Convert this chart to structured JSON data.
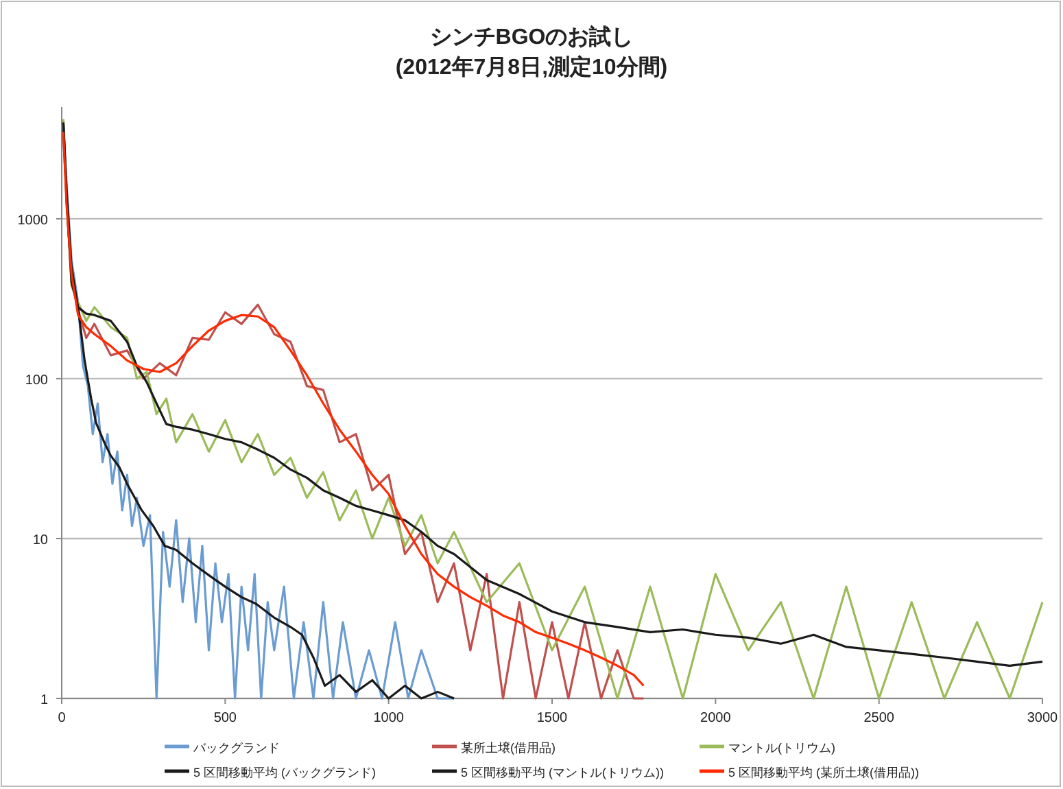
{
  "chart_data": {
    "type": "line",
    "title": "シンチBGOのお試し",
    "subtitle": "(2012年7月8日,測定10分間)",
    "xlim": [
      0,
      3000
    ],
    "xticks": [
      0,
      500,
      1000,
      1500,
      2000,
      2500,
      3000
    ],
    "ylim": [
      1,
      5000
    ],
    "yticks": [
      1,
      10,
      100,
      1000
    ],
    "log": true,
    "grid": "y",
    "legend": "bottom",
    "series": [
      {
        "name": "バックグランド",
        "color": "#6a9bd1",
        "x": [
          5,
          15,
          30,
          50,
          65,
          80,
          95,
          110,
          125,
          140,
          155,
          170,
          185,
          200,
          215,
          230,
          250,
          270,
          290,
          310,
          330,
          350,
          370,
          390,
          410,
          430,
          450,
          470,
          490,
          510,
          530,
          550,
          570,
          590,
          610,
          630,
          650,
          680,
          710,
          740,
          770,
          800,
          830,
          860,
          900,
          940,
          980,
          1020,
          1060,
          1100,
          1150,
          1200
        ],
        "values": [
          3800,
          1600,
          550,
          300,
          120,
          90,
          45,
          70,
          30,
          45,
          22,
          35,
          15,
          25,
          12,
          18,
          9,
          14,
          1,
          11,
          5,
          13,
          4,
          10,
          3,
          9,
          2,
          7,
          3,
          6,
          1,
          5,
          2,
          6,
          1,
          4,
          2,
          5,
          1,
          3,
          1,
          4,
          1,
          3,
          1,
          2,
          1,
          3,
          1,
          2,
          1,
          1
        ]
      },
      {
        "name": "某所土壌(借用品)",
        "color": "#c0504d",
        "x": [
          5,
          15,
          30,
          50,
          75,
          100,
          150,
          200,
          250,
          300,
          350,
          400,
          450,
          500,
          550,
          600,
          650,
          700,
          750,
          800,
          850,
          900,
          950,
          1000,
          1050,
          1100,
          1150,
          1200,
          1250,
          1300,
          1350,
          1400,
          1450,
          1500,
          1550,
          1600,
          1650,
          1700,
          1750,
          1780
        ],
        "values": [
          3300,
          1300,
          420,
          270,
          180,
          220,
          140,
          150,
          100,
          125,
          105,
          180,
          175,
          260,
          220,
          290,
          190,
          170,
          90,
          85,
          40,
          45,
          20,
          25,
          8,
          11,
          4,
          7,
          2,
          6,
          1,
          4,
          1,
          3,
          1,
          3,
          1,
          2,
          1,
          1
        ]
      },
      {
        "name": "マントル(トリウム)",
        "color": "#9bbb59",
        "x": [
          5,
          15,
          30,
          50,
          75,
          100,
          150,
          200,
          230,
          260,
          290,
          320,
          350,
          400,
          450,
          500,
          550,
          600,
          650,
          700,
          750,
          800,
          850,
          900,
          950,
          1000,
          1050,
          1100,
          1150,
          1200,
          1300,
          1400,
          1500,
          1600,
          1700,
          1800,
          1900,
          2000,
          2100,
          2200,
          2300,
          2400,
          2500,
          2600,
          2700,
          2800,
          2900,
          3000
        ],
        "values": [
          4200,
          1400,
          380,
          300,
          230,
          280,
          210,
          180,
          100,
          110,
          60,
          75,
          40,
          60,
          35,
          55,
          30,
          45,
          25,
          32,
          18,
          26,
          13,
          20,
          10,
          18,
          9,
          14,
          7,
          11,
          4,
          7,
          2,
          5,
          1,
          5,
          1,
          6,
          2,
          4,
          1,
          5,
          1,
          4,
          1,
          3,
          1,
          4
        ]
      },
      {
        "name": "5 区間移動平均 (バックグランド)",
        "color": "#1a1a1a",
        "x": [
          5,
          15,
          30,
          50,
          70,
          90,
          105,
          130,
          150,
          176,
          200,
          245,
          280,
          315,
          350,
          400,
          455,
          500,
          550,
          595,
          650,
          700,
          735,
          770,
          805,
          850,
          900,
          950,
          1000,
          1050,
          1100,
          1150,
          1200
        ],
        "values": [
          4000,
          1500,
          500,
          277,
          130,
          75,
          53,
          40,
          33,
          28,
          22,
          15,
          12,
          9,
          8.5,
          7,
          5.8,
          5,
          4.3,
          3.9,
          3.2,
          2.8,
          2.5,
          1.8,
          1.2,
          1.4,
          1.1,
          1.3,
          1,
          1.2,
          1,
          1.1,
          1
        ]
      },
      {
        "name": "5 区間移動平均 (マントル(トリウム))",
        "color": "#1a1a1a",
        "x": [
          5,
          15,
          30,
          50,
          75,
          100,
          150,
          200,
          230,
          260,
          290,
          320,
          350,
          400,
          450,
          500,
          550,
          600,
          650,
          700,
          750,
          800,
          850,
          900,
          950,
          1000,
          1050,
          1100,
          1150,
          1200,
          1300,
          1400,
          1500,
          1600,
          1700,
          1800,
          1900,
          2000,
          2100,
          2200,
          2300,
          2400,
          2500,
          2600,
          2700,
          2800,
          2900,
          3000
        ],
        "values": [
          4000,
          1300,
          400,
          280,
          255,
          250,
          230,
          170,
          120,
          95,
          70,
          52,
          50,
          48,
          45,
          42,
          40,
          36,
          32,
          27,
          24,
          20,
          18,
          16,
          15,
          14,
          13,
          11,
          9,
          8,
          5.5,
          4.5,
          3.5,
          3,
          2.8,
          2.6,
          2.7,
          2.5,
          2.4,
          2.2,
          2.5,
          2.1,
          2,
          1.9,
          1.8,
          1.7,
          1.6,
          1.7
        ]
      },
      {
        "name": "5 区間移動平均 (某所土壌(借用品))",
        "color": "#ff2a00",
        "x": [
          5,
          15,
          30,
          50,
          75,
          100,
          150,
          200,
          250,
          300,
          350,
          400,
          450,
          500,
          550,
          600,
          650,
          700,
          750,
          800,
          850,
          900,
          950,
          1000,
          1050,
          1100,
          1150,
          1200,
          1250,
          1300,
          1350,
          1400,
          1450,
          1500,
          1550,
          1600,
          1650,
          1700,
          1750,
          1780
        ],
        "values": [
          3500,
          1200,
          450,
          250,
          210,
          190,
          160,
          130,
          115,
          110,
          125,
          160,
          200,
          230,
          250,
          245,
          210,
          150,
          105,
          70,
          48,
          35,
          25,
          19,
          12,
          8,
          6,
          5,
          4.3,
          3.8,
          3.3,
          3,
          2.6,
          2.4,
          2.2,
          2,
          1.8,
          1.6,
          1.4,
          1.2
        ]
      }
    ]
  }
}
